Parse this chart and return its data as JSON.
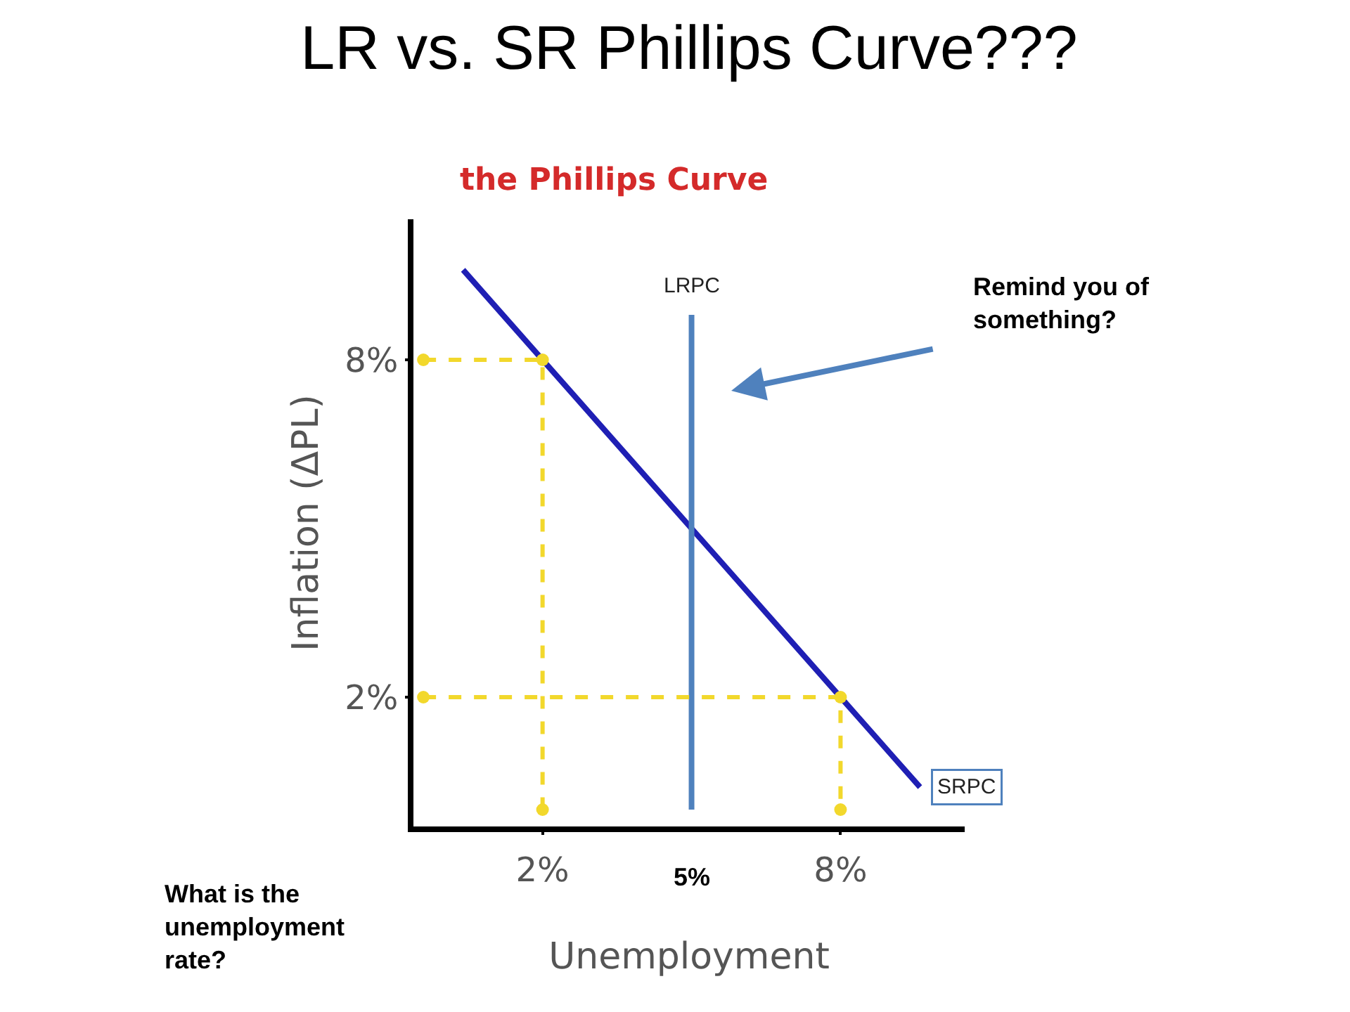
{
  "chart_data": {
    "type": "line",
    "title": "LR vs. SR Phillips Curve???",
    "subtitle": "the Phillips Curve",
    "xlabel": "Unemployment",
    "ylabel": "Inflation (ΔPL)",
    "xlim": [
      -0.6,
      10.5
    ],
    "ylim": [
      -0.3,
      10.5
    ],
    "xticks": [
      {
        "value": 2,
        "label": "2%"
      },
      {
        "value": 8,
        "label": "8%"
      }
    ],
    "yticks": [
      {
        "value": 2,
        "label": "2%"
      },
      {
        "value": 8,
        "label": "8%"
      }
    ],
    "grid": false,
    "legend": false,
    "series": [
      {
        "name": "SRPC",
        "color": "#1f1fb4",
        "x": [
          0.4,
          2,
          8,
          9.6
        ],
        "values": [
          9.6,
          8,
          2,
          0.4
        ],
        "line_style": "solid",
        "marker": "none"
      },
      {
        "name": "LRPC",
        "color": "#4f81bd",
        "x": [
          5,
          5
        ],
        "values": [
          0,
          8.8
        ],
        "line_style": "solid",
        "marker": "none"
      },
      {
        "color": "#f2d82c",
        "x": [
          -0.4,
          2,
          2
        ],
        "values": [
          8,
          8,
          0
        ],
        "line_style": "dashed",
        "marker": "circle"
      },
      {
        "color": "#f2d82c",
        "x": [
          -0.4,
          8,
          8
        ],
        "values": [
          2,
          2,
          0
        ],
        "line_style": "dashed",
        "marker": "circle"
      }
    ],
    "annotations": [
      "5%",
      "Remind you of something?",
      "What is the unemployment rate?"
    ]
  }
}
